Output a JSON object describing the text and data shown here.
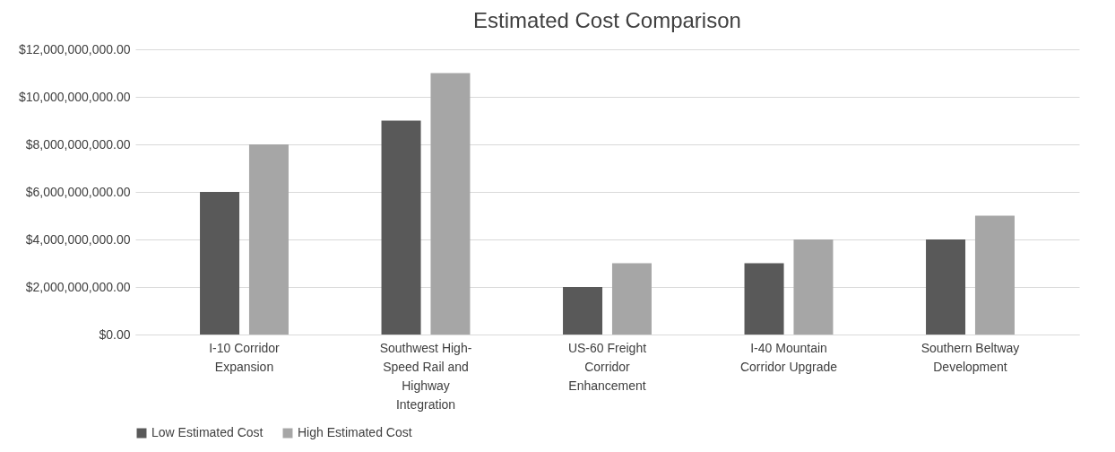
{
  "chart_data": {
    "type": "bar",
    "title": "Estimated Cost Comparison",
    "categories": [
      "I-10 Corridor Expansion",
      "Southwest High-Speed Rail and Highway Integration",
      "US-60 Freight Corridor Enhancement",
      "I-40 Mountain Corridor Upgrade",
      "Southern Beltway Development"
    ],
    "series": [
      {
        "name": "Low Estimated Cost",
        "color": "#595959",
        "values": [
          6000000000,
          9000000000,
          2000000000,
          3000000000,
          4000000000
        ]
      },
      {
        "name": "High Estimated Cost",
        "color": "#a6a6a6",
        "values": [
          8000000000,
          11000000000,
          3000000000,
          4000000000,
          5000000000
        ]
      }
    ],
    "ylim": [
      0,
      12000000000
    ],
    "yticks": [
      {
        "value": 0,
        "label": "$0.00"
      },
      {
        "value": 2000000000,
        "label": "$2,000,000,000.00"
      },
      {
        "value": 4000000000,
        "label": "$4,000,000,000.00"
      },
      {
        "value": 6000000000,
        "label": "$6,000,000,000.00"
      },
      {
        "value": 8000000000,
        "label": "$8,000,000,000.00"
      },
      {
        "value": 10000000000,
        "label": "$10,000,000,000.00"
      },
      {
        "value": 12000000000,
        "label": "$12,000,000,000.00"
      }
    ],
    "grid": "y",
    "legend": "bottom"
  }
}
